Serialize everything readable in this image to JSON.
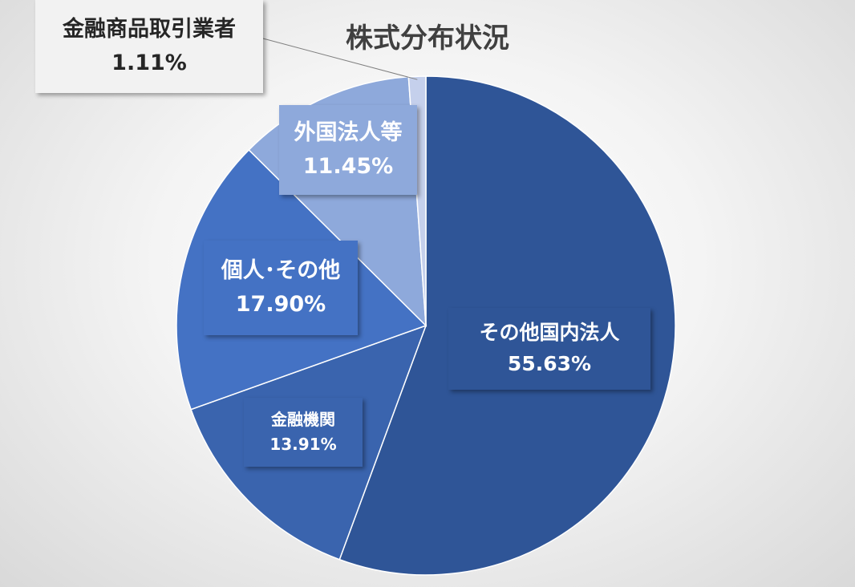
{
  "chart_data": {
    "type": "pie",
    "title": "株式分布状況",
    "slices": [
      {
        "name": "その他国内法人",
        "value": 55.63,
        "value_label": "55.63%",
        "color": "#2F5597"
      },
      {
        "name": "金融機関",
        "value": 13.91,
        "value_label": "13.91%",
        "color": "#3A64AE"
      },
      {
        "name": "個人･その他",
        "value": 17.9,
        "value_label": "17.90%",
        "color": "#4472C4"
      },
      {
        "name": "外国法人等",
        "value": 11.45,
        "value_label": "11.45%",
        "color": "#8EA9DB"
      },
      {
        "name": "金融商品取引業者",
        "value": 1.11,
        "value_label": "1.11%",
        "color": "#C5D0EC"
      }
    ],
    "start_direction": "12 o'clock",
    "direction": "clockwise",
    "legend": "none",
    "label_colors": {
      "box_text": "#FFFFFF",
      "outside_text": "#262626",
      "outside_box": "#F2F2F2"
    }
  }
}
